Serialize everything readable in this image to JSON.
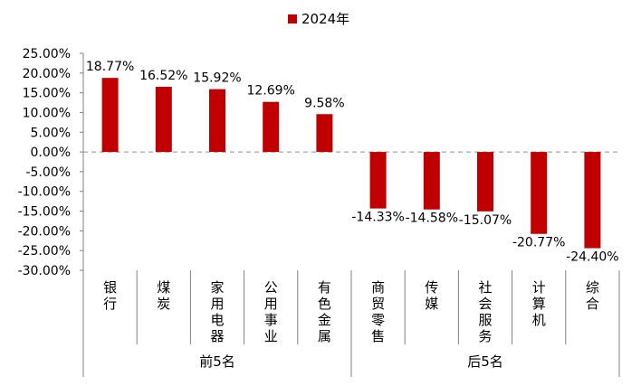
{
  "chart_data": {
    "type": "bar",
    "legend": {
      "label": "2024年",
      "color": "#C00000",
      "placement": "top-center"
    },
    "series": [
      {
        "name": "2024年",
        "color": "#C00000",
        "values": [
          18.77,
          16.52,
          15.92,
          12.69,
          9.58,
          -14.33,
          -14.58,
          -15.07,
          -20.77,
          -24.4
        ]
      }
    ],
    "categories": [
      "银行",
      "煤炭",
      "家用电器",
      "公用事业",
      "有色金属",
      "商贸零售",
      "传媒",
      "社会服务",
      "计算机",
      "综合"
    ],
    "data_labels": [
      "18.77%",
      "16.52%",
      "15.92%",
      "12.69%",
      "9.58%",
      "-14.33%",
      "-14.58%",
      "-15.07%",
      "-20.77%",
      "-24.40%"
    ],
    "groups": [
      {
        "label": "前5名",
        "count": 5
      },
      {
        "label": "后5名",
        "count": 5
      }
    ],
    "y_ticks": [
      "25.00%",
      "20.00%",
      "15.00%",
      "10.00%",
      "5.00%",
      "0.00%",
      "-5.00%",
      "-10.00%",
      "-15.00%",
      "-20.00%",
      "-25.00%",
      "-30.00%"
    ],
    "ylim": [
      -30,
      25
    ],
    "grid": false,
    "title": "",
    "xlabel": "",
    "ylabel": ""
  }
}
